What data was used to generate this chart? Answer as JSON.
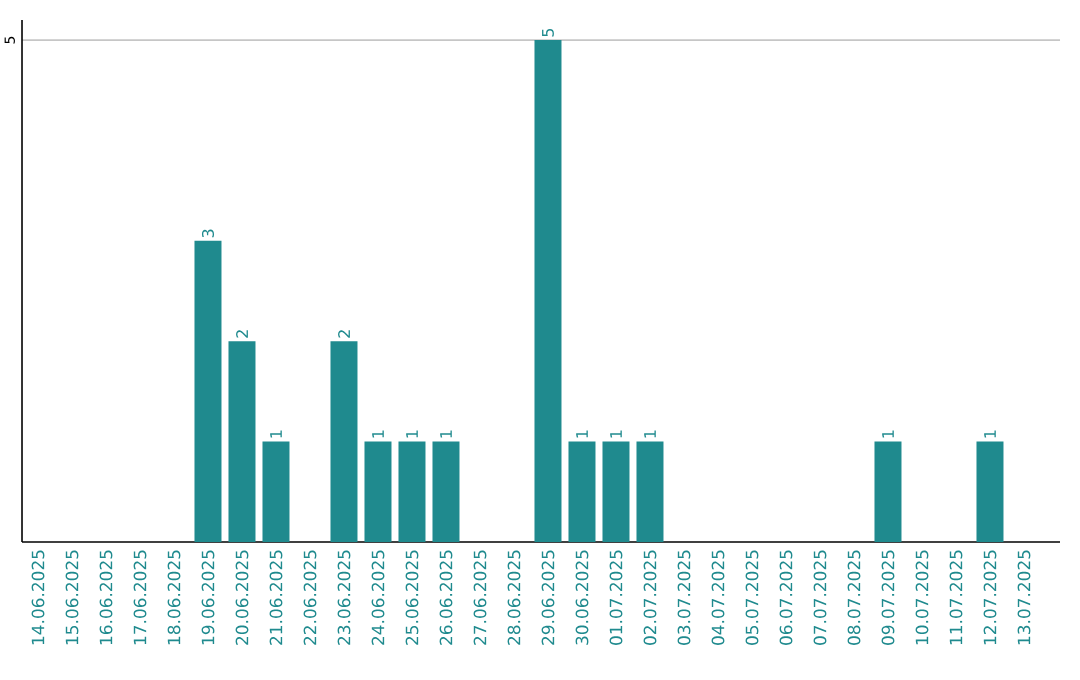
{
  "chart_data": {
    "type": "bar",
    "categories": [
      "14.06.2025",
      "15.06.2025",
      "16.06.2025",
      "17.06.2025",
      "18.06.2025",
      "19.06.2025",
      "20.06.2025",
      "21.06.2025",
      "22.06.2025",
      "23.06.2025",
      "24.06.2025",
      "25.06.2025",
      "26.06.2025",
      "27.06.2025",
      "28.06.2025",
      "29.06.2025",
      "30.06.2025",
      "01.07.2025",
      "02.07.2025",
      "03.07.2025",
      "04.07.2025",
      "05.07.2025",
      "06.07.2025",
      "07.07.2025",
      "08.07.2025",
      "09.07.2025",
      "10.07.2025",
      "11.07.2025",
      "12.07.2025",
      "13.07.2025"
    ],
    "values": [
      0,
      0,
      0,
      0,
      0,
      3,
      2,
      1,
      0,
      2,
      1,
      1,
      1,
      0,
      0,
      5,
      1,
      1,
      1,
      0,
      0,
      0,
      0,
      0,
      0,
      1,
      0,
      0,
      1,
      0
    ],
    "value_labels": [
      null,
      null,
      null,
      null,
      null,
      "3",
      "2",
      "1",
      null,
      "2",
      "1",
      "1",
      "1",
      null,
      null,
      "5",
      "1",
      "1",
      "1",
      null,
      null,
      null,
      null,
      null,
      null,
      "1",
      null,
      null,
      "1",
      null
    ],
    "color": "#1f8a8e",
    "ylim": [
      0,
      5.2
    ],
    "yticks": [
      5
    ],
    "grid": "y"
  }
}
